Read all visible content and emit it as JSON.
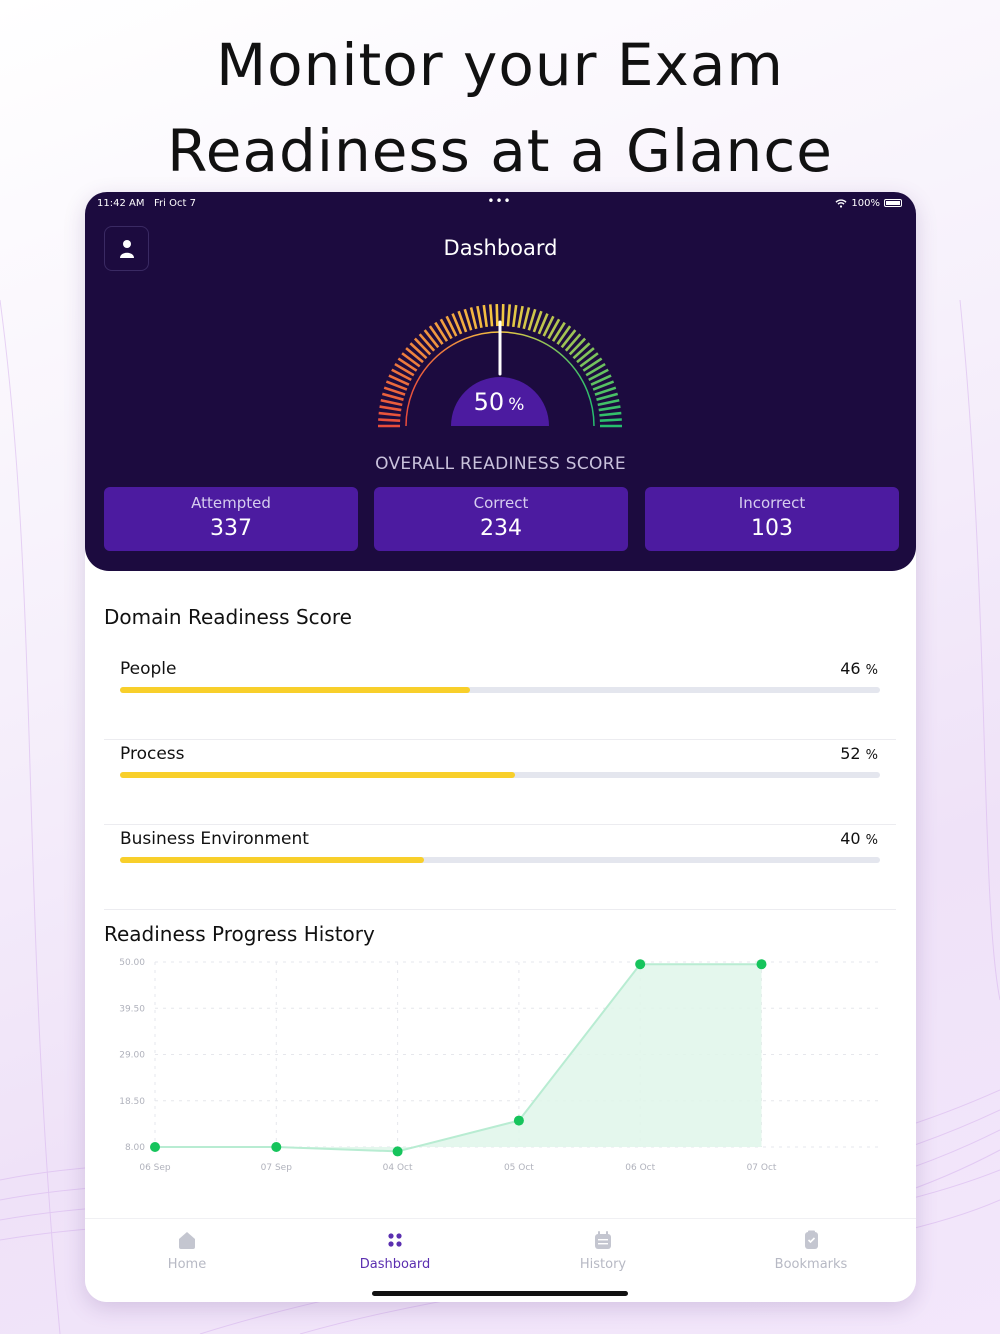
{
  "headline": {
    "line1": "Monitor your Exam",
    "line2": "Readiness at a Glance"
  },
  "status_bar": {
    "time": "11:42 AM",
    "date": "Fri Oct 7",
    "battery": "100%"
  },
  "header": {
    "title": "Dashboard"
  },
  "gauge": {
    "value": 50,
    "value_text": "50",
    "unit": "%",
    "label": "OVERALL READINESS SCORE"
  },
  "stats": [
    {
      "label": "Attempted",
      "value": "337"
    },
    {
      "label": "Correct",
      "value": "234"
    },
    {
      "label": "Incorrect",
      "value": "103"
    }
  ],
  "domain_section": {
    "title": "Domain Readiness Score",
    "items": [
      {
        "name": "People",
        "value": 46,
        "pct_text": "46",
        "unit": "%"
      },
      {
        "name": "Process",
        "value": 52,
        "pct_text": "52",
        "unit": "%"
      },
      {
        "name": "Business Environment",
        "value": 40,
        "pct_text": "40",
        "unit": "%"
      }
    ]
  },
  "history_section": {
    "title": "Readiness Progress History"
  },
  "chart_data": {
    "type": "area",
    "title": "Readiness Progress History",
    "categories": [
      "06 Sep",
      "07 Sep",
      "04 Oct",
      "05 Oct",
      "06 Oct",
      "07 Oct"
    ],
    "values": [
      8.0,
      8.0,
      7.0,
      14.0,
      49.5,
      49.5
    ],
    "y_ticks": [
      "50.00",
      "39.50",
      "29.00",
      "18.50",
      "8.00"
    ],
    "ylim": [
      8,
      50
    ],
    "grid": true,
    "colors": {
      "line": "#b8ecd2",
      "fill": "#dff6ea",
      "point": "#16c45c"
    }
  },
  "tabs": [
    {
      "label": "Home",
      "icon": "home-icon",
      "active": false
    },
    {
      "label": "Dashboard",
      "icon": "dashboard-icon",
      "active": true
    },
    {
      "label": "History",
      "icon": "history-icon",
      "active": false
    },
    {
      "label": "Bookmarks",
      "icon": "bookmarks-icon",
      "active": false
    }
  ],
  "colors": {
    "hero_bg": "#1c0b3f",
    "stat_bg": "#4c1ba0",
    "progress_fill": "#f8cf2a",
    "accent": "#5b2fb0"
  }
}
